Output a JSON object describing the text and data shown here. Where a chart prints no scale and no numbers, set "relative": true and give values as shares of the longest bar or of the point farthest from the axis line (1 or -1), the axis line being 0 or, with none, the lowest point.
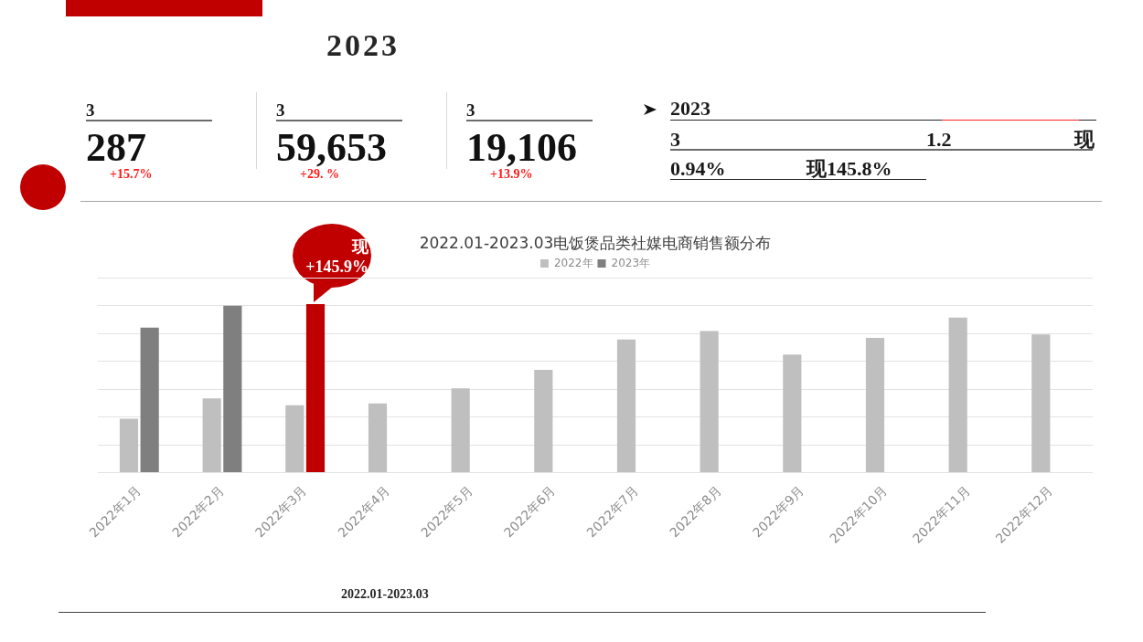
{
  "chart_data": [
    {
      "type": "other",
      "title": "2023",
      "annotations": [
        "3",
        "287",
        "+15.7%",
        "3",
        "59,653",
        "+29. %",
        "3",
        "19,106",
        "+13.9%",
        "2023",
        "3",
        "1.2",
        "现",
        "0.94%",
        "现145.8%"
      ]
    },
    {
      "type": "bar",
      "title": "2022.01-2023.03电饭煲品类社媒电商销售额分布",
      "categories": [
        "2022年1月",
        "2022年2月",
        "2022年3月",
        "2022年4月",
        "2022年5月",
        "2022年6月",
        "2022年7月",
        "2022年8月",
        "2022年9月",
        "2022年10月",
        "2022年11月",
        "2022年12月"
      ],
      "series": [
        {
          "name": "2022年",
          "color": "#bfbfbf",
          "values": [
            0.32,
            0.44,
            0.4,
            0.41,
            0.5,
            0.61,
            0.79,
            0.84,
            0.7,
            0.8,
            0.92,
            0.82
          ]
        },
        {
          "name": "2023年",
          "color": "#7f7f7f",
          "colors": [
            "#7f7f7f",
            "#7f7f7f",
            "#c00000",
            null,
            null,
            null,
            null,
            null,
            null,
            null,
            null,
            null
          ],
          "values": [
            0.86,
            0.99,
            1,
            null,
            null,
            null,
            null,
            null,
            null,
            null,
            null,
            null
          ]
        }
      ],
      "relative": true,
      "grid": "y",
      "legend": "top",
      "annotations": [
        {
          "text": "现\n+145.9%",
          "x": "2022年3月",
          "y": 1
        },
        "2022.01-2023.03"
      ]
    }
  ]
}
